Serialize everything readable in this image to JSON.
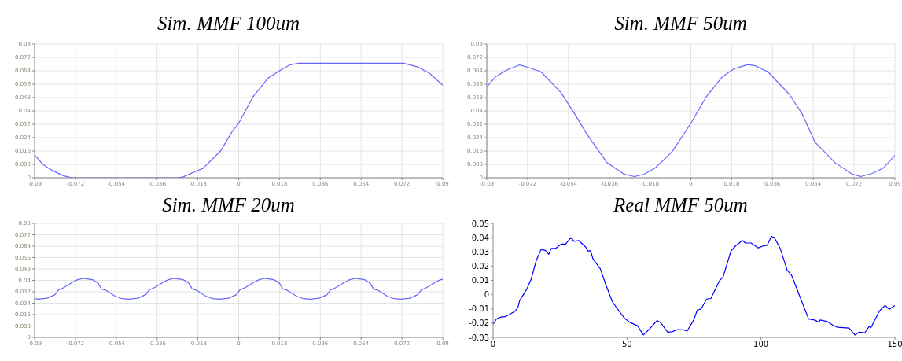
{
  "chart_data": [
    {
      "type": "line",
      "title": "Sim. MMF 100um",
      "color": "#6666ff",
      "grid": true,
      "xlim": [
        -0.09,
        0.09
      ],
      "xticks": [
        -0.09,
        -0.072,
        -0.054,
        -0.036,
        -0.018,
        0,
        0.018,
        0.036,
        0.054,
        0.072,
        0.09
      ],
      "ylim": [
        0,
        0.08
      ],
      "yticks": [
        0,
        0.008,
        0.016,
        0.024,
        0.032,
        0.04,
        0.048,
        0.056,
        0.064,
        0.072,
        0.08
      ],
      "x": [
        -0.09,
        -0.0864,
        -0.0823,
        -0.0772,
        -0.0733,
        -0.054,
        -0.036,
        -0.0272,
        -0.0247,
        -0.0157,
        -0.008,
        -0.0029,
        0,
        0.0064,
        0.0131,
        0.018,
        0.0227,
        0.0266,
        0.0727,
        0.079,
        0.0841,
        0.09
      ],
      "values": [
        0.0137,
        0.008,
        0.0044,
        0.0011,
        0,
        0,
        0,
        0,
        0.0004,
        0.0057,
        0.016,
        0.0276,
        0.0326,
        0.0487,
        0.0598,
        0.064,
        0.0676,
        0.0685,
        0.0685,
        0.0663,
        0.0626,
        0.0554
      ]
    },
    {
      "type": "line",
      "title": "Sim. MMF 50um",
      "color": "#6666ff",
      "grid": true,
      "xlim": [
        -0.09,
        0.09
      ],
      "xticks": [
        -0.09,
        -0.072,
        -0.054,
        -0.036,
        -0.018,
        0,
        0.018,
        0.036,
        0.054,
        0.072,
        0.09
      ],
      "ylim": [
        0,
        0.08
      ],
      "yticks": [
        0,
        0.008,
        0.016,
        0.024,
        0.032,
        0.04,
        0.048,
        0.056,
        0.064,
        0.072,
        0.08
      ],
      "x": [
        -0.09,
        -0.0862,
        -0.0812,
        -0.0755,
        -0.0717,
        -0.0661,
        -0.0573,
        -0.0516,
        -0.0459,
        -0.0371,
        -0.0296,
        -0.0249,
        -0.0208,
        -0.0157,
        -0.0082,
        0,
        0.0069,
        0.0138,
        0.0189,
        0.0252,
        0.0283,
        0.034,
        0.0434,
        0.0491,
        0.0548,
        0.0636,
        0.0711,
        0.0749,
        0.08,
        0.085,
        0.09
      ],
      "values": [
        0.0544,
        0.0603,
        0.0645,
        0.0675,
        0.066,
        0.0634,
        0.051,
        0.039,
        0.0262,
        0.0092,
        0.0022,
        0.0007,
        0.002,
        0.0059,
        0.0157,
        0.0326,
        0.0487,
        0.0603,
        0.0651,
        0.0677,
        0.067,
        0.0634,
        0.05,
        0.0382,
        0.0212,
        0.009,
        0.0022,
        0.0007,
        0.0026,
        0.0059,
        0.0133
      ]
    },
    {
      "type": "line",
      "title": "Sim. MMF 20um",
      "color": "#6666ff",
      "grid": true,
      "xlim": [
        -0.09,
        0.09
      ],
      "xticks": [
        -0.09,
        -0.072,
        -0.054,
        -0.036,
        -0.018,
        0,
        0.018,
        0.036,
        0.054,
        0.072,
        0.09
      ],
      "ylim": [
        0,
        0.08
      ],
      "yticks": [
        0,
        0.008,
        0.016,
        0.024,
        0.032,
        0.04,
        0.048,
        0.056,
        0.064,
        0.072,
        0.08
      ],
      "x": [
        -0.09,
        -0.0885,
        -0.0845,
        -0.081,
        -0.0795,
        -0.077,
        -0.0735,
        -0.071,
        -0.0685,
        -0.0645,
        -0.062,
        -0.0605,
        -0.0585,
        -0.0545,
        -0.0515,
        -0.0485,
        -0.0445,
        -0.041,
        -0.0395,
        -0.037,
        -0.0335,
        -0.031,
        -0.0285,
        -0.0245,
        -0.022,
        -0.0205,
        -0.0185,
        -0.0145,
        -0.0115,
        -0.0085,
        -0.0045,
        -0.001,
        0.0005,
        0.003,
        0.0065,
        0.009,
        0.0115,
        0.0155,
        0.018,
        0.0195,
        0.0215,
        0.0255,
        0.0285,
        0.0315,
        0.0355,
        0.039,
        0.0405,
        0.043,
        0.0465,
        0.049,
        0.0515,
        0.0555,
        0.058,
        0.0595,
        0.0615,
        0.0655,
        0.0685,
        0.0715,
        0.0755,
        0.079,
        0.0805,
        0.083,
        0.0865,
        0.089,
        0.09
      ],
      "values": [
        0.0272,
        0.0268,
        0.0275,
        0.03,
        0.0333,
        0.035,
        0.0385,
        0.0405,
        0.0414,
        0.0405,
        0.038,
        0.034,
        0.033,
        0.029,
        0.0272,
        0.0268,
        0.0275,
        0.03,
        0.0333,
        0.035,
        0.0385,
        0.0405,
        0.0414,
        0.0405,
        0.038,
        0.034,
        0.033,
        0.029,
        0.0272,
        0.0268,
        0.0275,
        0.03,
        0.0333,
        0.035,
        0.0385,
        0.0405,
        0.0414,
        0.0405,
        0.038,
        0.034,
        0.033,
        0.029,
        0.0272,
        0.0268,
        0.0275,
        0.03,
        0.0333,
        0.035,
        0.0385,
        0.0405,
        0.0414,
        0.0405,
        0.038,
        0.034,
        0.033,
        0.029,
        0.0272,
        0.0268,
        0.0275,
        0.03,
        0.0333,
        0.035,
        0.0385,
        0.0405,
        0.0408
      ]
    },
    {
      "type": "line",
      "title": "Real MMF 50um",
      "color": "#0000ff",
      "grid": false,
      "xlim": [
        0,
        150
      ],
      "xticks": [
        0,
        50,
        100,
        150
      ],
      "ylim": [
        -0.03,
        0.05
      ],
      "yticks": [
        -0.03,
        -0.02,
        -0.01,
        0,
        0.01,
        0.02,
        0.03,
        0.04,
        0.05
      ],
      "x": [
        0,
        1.3,
        2.9,
        4.5,
        6.7,
        8.3,
        9.3,
        9.9,
        12.6,
        14.2,
        16.1,
        17.9,
        19.5,
        20.8,
        21.7,
        23.3,
        25.5,
        27.1,
        29,
        30.3,
        31.9,
        34.6,
        35.4,
        36.4,
        37.3,
        40,
        42.1,
        44.5,
        46.4,
        49.1,
        51.2,
        53.9,
        56.1,
        58.2,
        61.2,
        62.5,
        65.2,
        66.8,
        68.9,
        71.1,
        72.4,
        74.9,
        76.2,
        77.7,
        79.7,
        81.3,
        84.5,
        85.9,
        88.8,
        90.4,
        93.1,
        94.2,
        96.3,
        99,
        100.6,
        102.3,
        103.9,
        105,
        107.1,
        109.8,
        111.4,
        117.8,
        120,
        121.6,
        122.1,
        124.8,
        127,
        128.6,
        132.9,
        135.1,
        136.7,
        138.8,
        140.4,
        141,
        144.2,
        146.3,
        147.9,
        150
      ],
      "values": [
        -0.0207,
        -0.017,
        -0.0157,
        -0.0155,
        -0.0133,
        -0.0115,
        -0.0088,
        -0.0043,
        0.004,
        0.0108,
        0.0238,
        0.0317,
        0.031,
        0.0283,
        0.0324,
        0.0324,
        0.0355,
        0.0355,
        0.04,
        0.0373,
        0.038,
        0.0333,
        0.0306,
        0.0308,
        0.025,
        0.0182,
        0.007,
        -0.0049,
        -0.0099,
        -0.0166,
        -0.0196,
        -0.0218,
        -0.0283,
        -0.0245,
        -0.0182,
        -0.0196,
        -0.0263,
        -0.0261,
        -0.0245,
        -0.0247,
        -0.0256,
        -0.0178,
        -0.011,
        -0.0099,
        -0.0031,
        -0.0027,
        0.0097,
        0.0126,
        0.0306,
        0.034,
        0.038,
        0.0362,
        0.0362,
        0.0328,
        0.034,
        0.0346,
        0.0409,
        0.04,
        0.0328,
        0.0171,
        0.0137,
        -0.0171,
        -0.0178,
        -0.0193,
        -0.0178,
        -0.0189,
        -0.0216,
        -0.0229,
        -0.0234,
        -0.0283,
        -0.0263,
        -0.0267,
        -0.0222,
        -0.0234,
        -0.0115,
        -0.0076,
        -0.0103,
        -0.0076
      ]
    }
  ]
}
